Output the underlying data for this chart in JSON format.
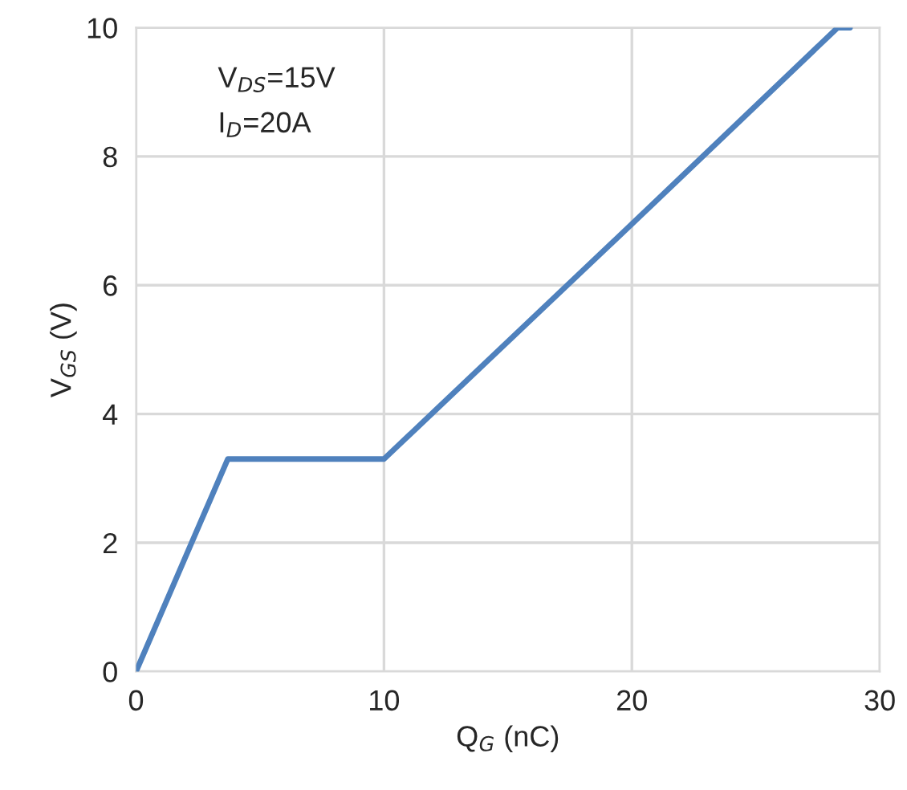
{
  "chart_data": {
    "type": "line",
    "xlabel": "Q$_{G}$ (nC)",
    "ylabel": "V$_{GS}$ (V)",
    "annotations": [
      "V$_{DS}$=15V",
      "I$_{D}$=20A"
    ],
    "series": [
      {
        "color": "#4f81bd",
        "x": [
          0,
          3.7,
          10,
          20,
          28.3,
          28.8
        ],
        "values": [
          0,
          3.3,
          3.3,
          6.95,
          10,
          10
        ]
      }
    ],
    "xlim": [
      0,
      30
    ],
    "xticks": [
      0,
      10,
      20,
      30
    ],
    "ylim": [
      0,
      10
    ],
    "yticks": [
      0,
      2,
      4,
      6,
      8,
      10
    ],
    "grid": true,
    "line_style": "solid",
    "marker": "none"
  }
}
